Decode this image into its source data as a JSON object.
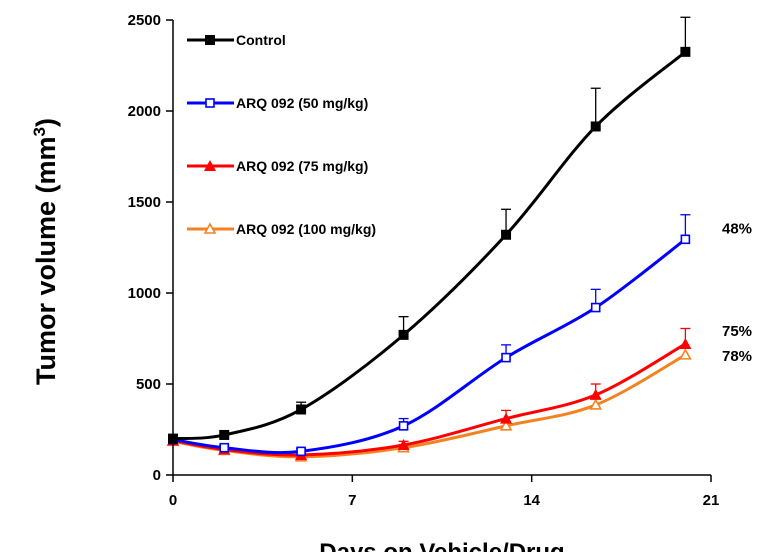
{
  "chart_data": {
    "type": "line",
    "title": "",
    "xlabel": "Days on Vehicle/Drug",
    "ylabel": "Tumor volume (mm³)",
    "ylabel_main": "Tumor volume (mm",
    "ylabel_sup": "3",
    "ylabel_end": ")",
    "xlim": [
      0,
      21
    ],
    "ylim": [
      0,
      2500
    ],
    "xticks": [
      0,
      7,
      14,
      21
    ],
    "yticks": [
      0,
      500,
      1000,
      1500,
      2000,
      2500
    ],
    "grid": false,
    "legend_position": "top-left",
    "series": [
      {
        "name": "Control",
        "color": "#000000",
        "marker": "square-filled",
        "x": [
          0,
          2,
          5,
          9,
          13,
          16.5,
          20
        ],
        "y": [
          200,
          220,
          360,
          770,
          1320,
          1915,
          2325
        ],
        "err": [
          0,
          0,
          40,
          100,
          140,
          210,
          190
        ]
      },
      {
        "name": "ARQ 092 (50 mg/kg)",
        "color": "#0000ff",
        "marker": "square-open",
        "x": [
          0,
          2,
          5,
          9,
          13,
          16.5,
          20
        ],
        "y": [
          195,
          150,
          130,
          270,
          645,
          920,
          1295
        ],
        "err": [
          0,
          15,
          15,
          40,
          70,
          100,
          135
        ]
      },
      {
        "name": "ARQ 092 (75 mg/kg)",
        "color": "#ff0000",
        "marker": "triangle-filled",
        "x": [
          0,
          2,
          5,
          9,
          13,
          16.5,
          20
        ],
        "y": [
          190,
          140,
          110,
          165,
          310,
          440,
          720
        ],
        "err": [
          0,
          10,
          12,
          20,
          45,
          60,
          85
        ]
      },
      {
        "name": "ARQ 092 (100 mg/kg)",
        "color": "#f58220",
        "marker": "triangle-open",
        "x": [
          0,
          2,
          5,
          9,
          13,
          16.5,
          20
        ],
        "y": [
          185,
          135,
          100,
          150,
          270,
          385,
          660
        ],
        "err": [
          0,
          10,
          10,
          18,
          25,
          35,
          40
        ]
      }
    ],
    "annotations": [
      {
        "text": "48%",
        "x": 20,
        "y": 1355
      },
      {
        "text": "75%",
        "x": 20,
        "y": 790
      },
      {
        "text": "78%",
        "x": 20,
        "y": 655
      }
    ]
  }
}
